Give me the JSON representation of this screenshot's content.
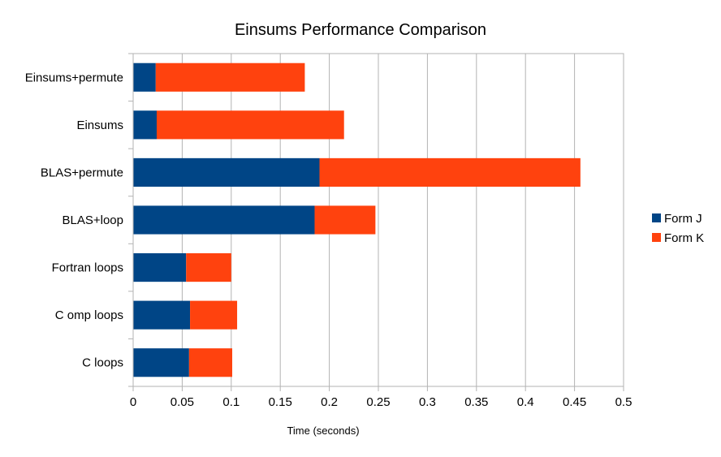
{
  "chart_data": {
    "type": "bar",
    "orientation": "horizontal",
    "stacked": true,
    "title": "Einsums Performance Comparison",
    "xlabel": "Time (seconds)",
    "ylabel": "",
    "xlim": [
      0,
      0.5
    ],
    "x_ticks": [
      "0",
      "0.05",
      "0.1",
      "0.15",
      "0.2",
      "0.25",
      "0.3",
      "0.35",
      "0.4",
      "0.45",
      "0.5"
    ],
    "grid": "vertical",
    "legend_position": "right",
    "categories": [
      "C loops",
      "C omp loops",
      "Fortran loops",
      "BLAS+loop",
      "BLAS+permute",
      "Einsums",
      "Einsums+permute"
    ],
    "series": [
      {
        "name": "Form J",
        "color": "#004586",
        "values": [
          0.057,
          0.058,
          0.054,
          0.185,
          0.19,
          0.024,
          0.023
        ]
      },
      {
        "name": "Form K",
        "color": "#ff420e",
        "values": [
          0.044,
          0.048,
          0.046,
          0.062,
          0.266,
          0.191,
          0.152
        ]
      }
    ]
  }
}
